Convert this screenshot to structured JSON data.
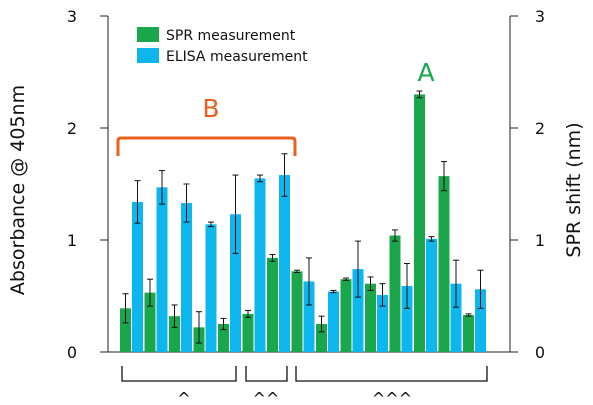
{
  "chart_data": {
    "type": "bar",
    "ylabel_left": "Absorbance @ 405nm",
    "ylabel_right": "SPR shift (nm)",
    "ylim_left": [
      0,
      3
    ],
    "ylim_right": [
      0,
      3
    ],
    "yticks_left": [
      "0",
      "1",
      "2",
      "3"
    ],
    "yticks_right": [
      "0",
      "1",
      "2",
      "3"
    ],
    "legend_position": "top-left",
    "grid": false,
    "series": [
      {
        "name": "SPR measurement",
        "color": "#1aa64b",
        "values": [
          0.39,
          0.53,
          0.32,
          0.22,
          0.25,
          0.34,
          0.84,
          0.72,
          0.25,
          0.65,
          0.61,
          1.04,
          2.3,
          1.57,
          0.33
        ],
        "errors": [
          0.13,
          0.12,
          0.1,
          0.14,
          0.05,
          0.03,
          0.03,
          0.01,
          0.07,
          0.01,
          0.06,
          0.05,
          0.03,
          0.13,
          0.01
        ]
      },
      {
        "name": "ELISA measurement",
        "color": "#0eb6ee",
        "values": [
          1.34,
          1.47,
          1.33,
          1.14,
          1.23,
          1.55,
          1.58,
          0.63,
          0.54,
          0.74,
          0.51,
          0.59,
          1.01,
          0.61,
          0.56
        ]
      }
    ],
    "elisa_errors": [
      0.19,
      0.15,
      0.17,
      0.02,
      0.35,
      0.03,
      0.19,
      0.21,
      0.01,
      0.25,
      0.1,
      0.2,
      0.02,
      0.21,
      0.17
    ],
    "annotations": [
      {
        "text": "A",
        "color": "#1aa64b"
      },
      {
        "text": "B",
        "color": "#e8601c"
      }
    ],
    "groups": [
      "^",
      "^^",
      "^^^"
    ]
  }
}
